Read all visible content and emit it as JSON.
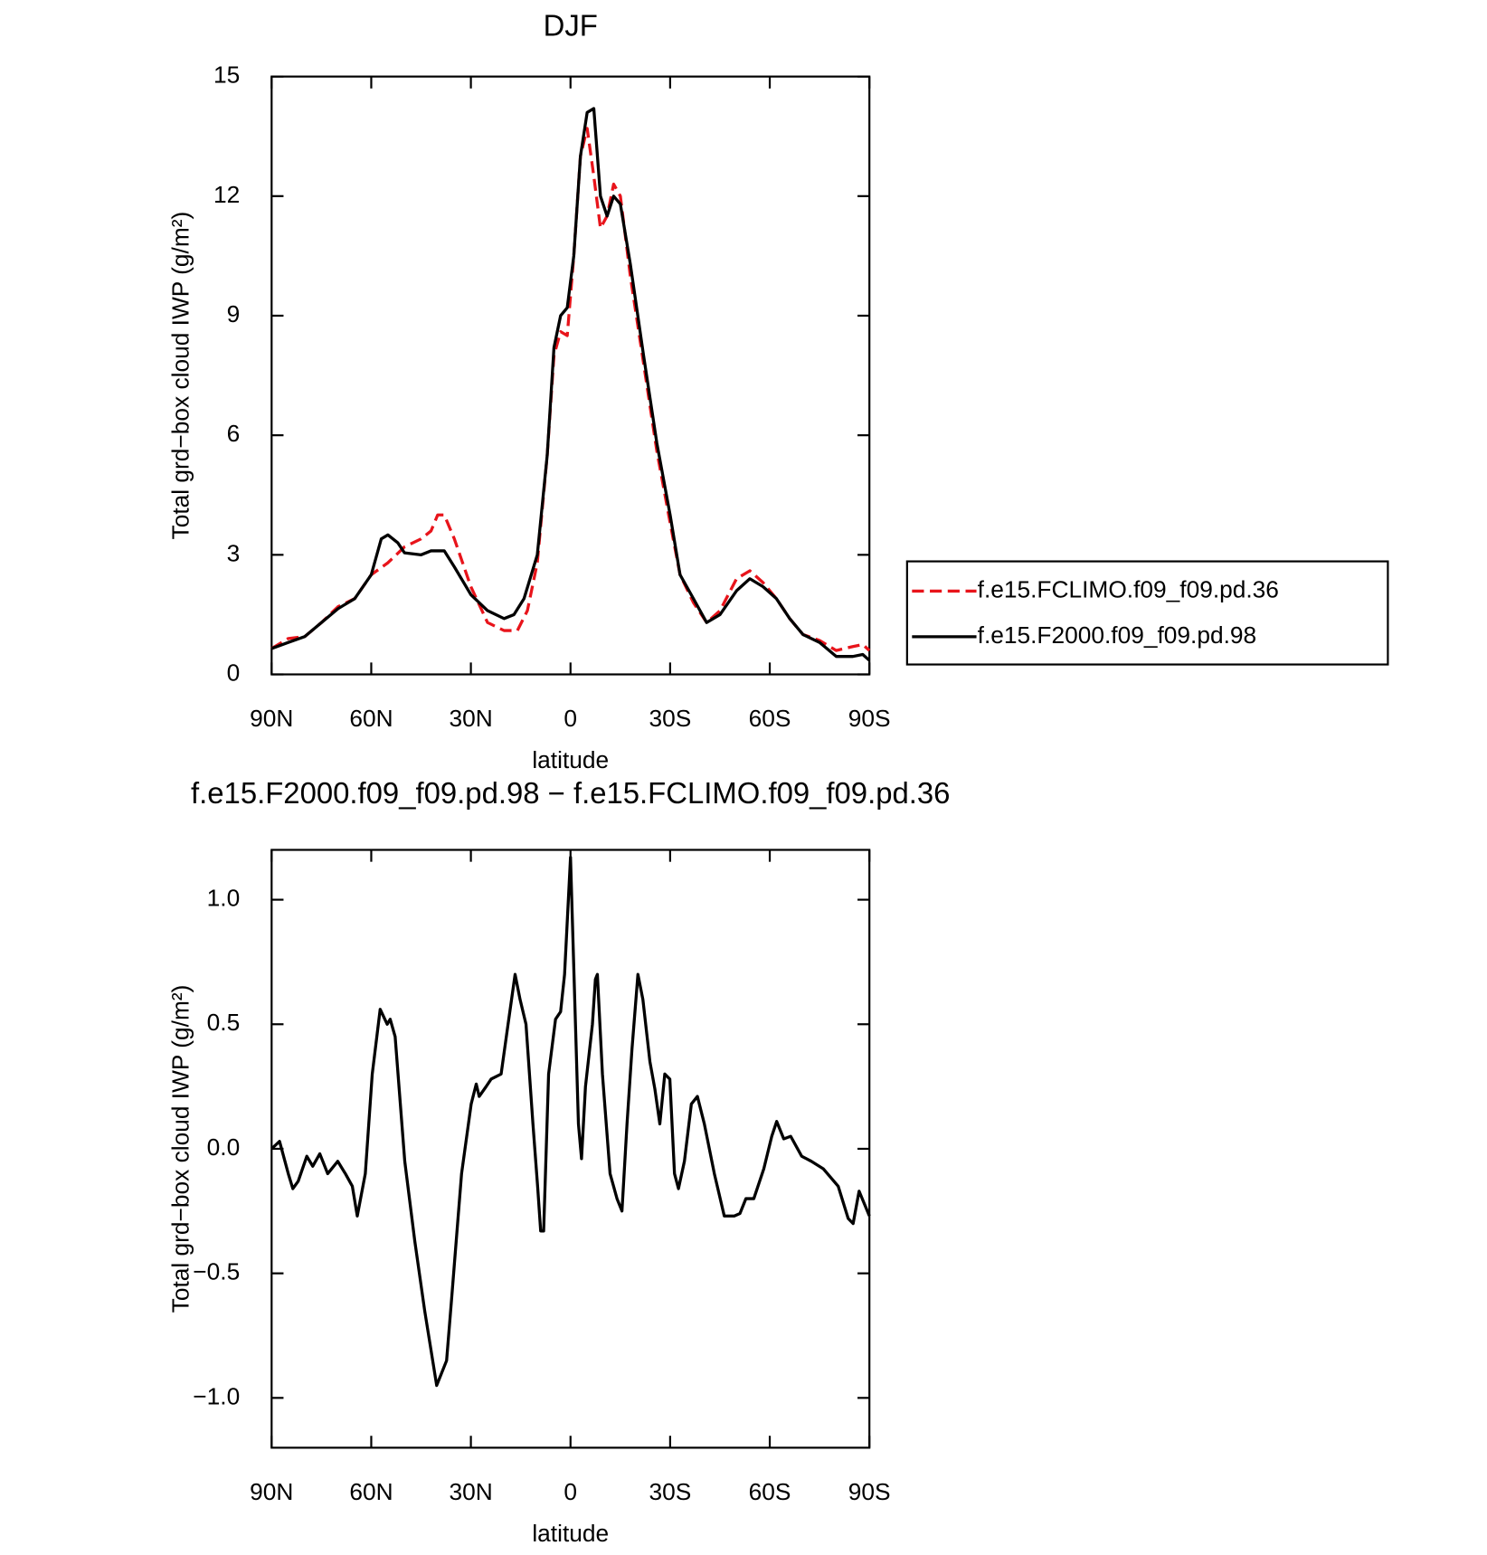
{
  "chart_data": [
    {
      "type": "line",
      "title": "DJF",
      "xlabel": "latitude",
      "ylabel": "Total grd−box cloud IWP (g/m²)",
      "xlim": [
        90,
        -90
      ],
      "xticks": [
        {
          "value": 90,
          "label": "90N"
        },
        {
          "value": 60,
          "label": "60N"
        },
        {
          "value": 30,
          "label": "30N"
        },
        0,
        {
          "value": -30,
          "label": "30S"
        },
        {
          "value": -60,
          "label": "60S"
        },
        {
          "value": -90,
          "label": "90S"
        }
      ],
      "ylim": [
        0,
        15
      ],
      "yticks": [
        0,
        3,
        6,
        9,
        12,
        15
      ],
      "legend": "outside-right",
      "series": [
        {
          "name": "f.e15.FCLIMO.f09_f09.pd.36",
          "color": "#e8141b",
          "dash": "dashed",
          "x": [
            90,
            85,
            80,
            75,
            70,
            65,
            60,
            55,
            50,
            45,
            42,
            40,
            38,
            35,
            30,
            25,
            20,
            16,
            13,
            10,
            7,
            5,
            3,
            1,
            -1,
            -3,
            -5,
            -7,
            -9,
            -11,
            -13,
            -15,
            -18,
            -22,
            -26,
            -30,
            -33,
            -37,
            -41,
            -45,
            -50,
            -54,
            -58,
            -62,
            -66,
            -70,
            -75,
            -80,
            -85,
            -88,
            -90
          ],
          "values": [
            0.65,
            0.9,
            0.95,
            1.3,
            1.7,
            1.9,
            2.5,
            2.8,
            3.2,
            3.4,
            3.6,
            4.0,
            4.0,
            3.4,
            2.2,
            1.3,
            1.1,
            1.1,
            1.6,
            2.8,
            5.5,
            8.0,
            8.6,
            8.5,
            10.5,
            13.0,
            13.7,
            12.5,
            11.2,
            11.5,
            12.3,
            12.0,
            10.0,
            7.8,
            5.6,
            3.8,
            2.5,
            1.8,
            1.3,
            1.6,
            2.4,
            2.6,
            2.3,
            1.9,
            1.4,
            1.0,
            0.85,
            0.6,
            0.7,
            0.75,
            0.6
          ]
        },
        {
          "name": "f.e15.F2000.f09_f09.pd.98",
          "color": "#000000",
          "dash": "solid",
          "x": [
            90,
            85,
            80,
            75,
            70,
            65,
            60,
            57,
            55,
            52,
            50,
            45,
            42,
            38,
            35,
            30,
            25,
            20,
            17,
            14,
            10,
            7,
            5,
            3,
            1,
            -1,
            -3,
            -5,
            -7,
            -9,
            -11,
            -13,
            -15,
            -18,
            -22,
            -26,
            -30,
            -33,
            -37,
            -41,
            -45,
            -50,
            -54,
            -58,
            -62,
            -66,
            -70,
            -75,
            -80,
            -85,
            -88,
            -90
          ],
          "values": [
            0.65,
            0.8,
            0.95,
            1.3,
            1.65,
            1.9,
            2.5,
            3.4,
            3.5,
            3.3,
            3.05,
            3.0,
            3.1,
            3.1,
            2.7,
            2.0,
            1.6,
            1.4,
            1.5,
            1.9,
            3.0,
            5.5,
            8.2,
            9.0,
            9.2,
            10.5,
            13.0,
            14.1,
            14.2,
            12.0,
            11.5,
            12.0,
            11.8,
            10.3,
            8.0,
            5.8,
            4.0,
            2.5,
            1.9,
            1.3,
            1.5,
            2.1,
            2.4,
            2.2,
            1.9,
            1.4,
            1.0,
            0.8,
            0.45,
            0.45,
            0.5,
            0.35
          ]
        }
      ]
    },
    {
      "type": "line",
      "title": "f.e15.F2000.f09_f09.pd.98 − f.e15.FCLIMO.f09_f09.pd.36",
      "xlabel": "latitude",
      "ylabel": "Total grd−box cloud IWP (g/m²)",
      "xlim": [
        90,
        -90
      ],
      "xticks": [
        {
          "value": 90,
          "label": "90N"
        },
        {
          "value": 60,
          "label": "60N"
        },
        {
          "value": 30,
          "label": "30N"
        },
        0,
        {
          "value": -30,
          "label": "30S"
        },
        {
          "value": -60,
          "label": "60S"
        },
        {
          "value": -90,
          "label": "90S"
        }
      ],
      "ylim": [
        -1.2,
        1.2
      ],
      "yticks": [
        {
          "value": -1,
          "label": "−1.0"
        },
        {
          "value": -0.5,
          "label": "−0.5"
        },
        {
          "value": 0,
          "label": "0.0"
        },
        0.5,
        {
          "value": 1,
          "label": "1.0"
        }
      ],
      "series": [
        {
          "color": "#000000",
          "dash": "solid",
          "x": [
            90,
            87.6,
            85,
            83.6,
            82,
            79.4,
            77.6,
            75.5,
            73.1,
            70.1,
            67.8,
            65.7,
            64.2,
            61.8,
            59.7,
            57.3,
            55.2,
            54.3,
            52.8,
            49.9,
            46.9,
            43.9,
            40.3,
            37.3,
            35.8,
            32.8,
            29.9,
            28.4,
            27.5,
            25.4,
            23.9,
            20.9,
            18.8,
            16.7,
            15.2,
            13.4,
            11.3,
            9.9,
            9.0,
            8.1,
            6.6,
            4.5,
            3.0,
            1.8,
            0,
            -1.5,
            -2.4,
            -3.3,
            -4.5,
            -6.6,
            -7.5,
            -8.1,
            -9.6,
            -11.9,
            -14.0,
            -15.5,
            -17.0,
            -18.5,
            -20.3,
            -21.8,
            -23.9,
            -25.4,
            -26.9,
            -28.4,
            -29.9,
            -31.3,
            -32.5,
            -34.3,
            -36.4,
            -38.2,
            -40.3,
            -43.3,
            -46.3,
            -49.3,
            -51.0,
            -52.8,
            -55.2,
            -58.2,
            -60.6,
            -62.1,
            -64.2,
            -66.3,
            -69.6,
            -72.5,
            -76.1,
            -80.6,
            -83.6,
            -85.1,
            -86.9,
            -90
          ],
          "values": [
            0.0,
            0.03,
            -0.1,
            -0.16,
            -0.13,
            -0.03,
            -0.07,
            -0.02,
            -0.1,
            -0.05,
            -0.1,
            -0.15,
            -0.27,
            -0.1,
            0.3,
            0.56,
            0.5,
            0.52,
            0.45,
            -0.05,
            -0.37,
            -0.65,
            -0.95,
            -0.85,
            -0.6,
            -0.1,
            0.18,
            0.26,
            0.21,
            0.25,
            0.28,
            0.3,
            0.5,
            0.7,
            0.6,
            0.5,
            0.1,
            -0.15,
            -0.33,
            -0.33,
            0.3,
            0.52,
            0.55,
            0.7,
            1.17,
            0.5,
            0.1,
            -0.04,
            0.25,
            0.5,
            0.68,
            0.7,
            0.3,
            -0.1,
            -0.2,
            -0.25,
            0.1,
            0.4,
            0.7,
            0.6,
            0.35,
            0.24,
            0.1,
            0.3,
            0.28,
            -0.1,
            -0.16,
            -0.05,
            0.18,
            0.21,
            0.1,
            -0.1,
            -0.27,
            -0.27,
            -0.26,
            -0.2,
            -0.2,
            -0.08,
            0.05,
            0.11,
            0.04,
            0.05,
            -0.03,
            -0.05,
            -0.08,
            -0.15,
            -0.28,
            -0.3,
            -0.17,
            -0.27
          ]
        }
      ]
    }
  ]
}
